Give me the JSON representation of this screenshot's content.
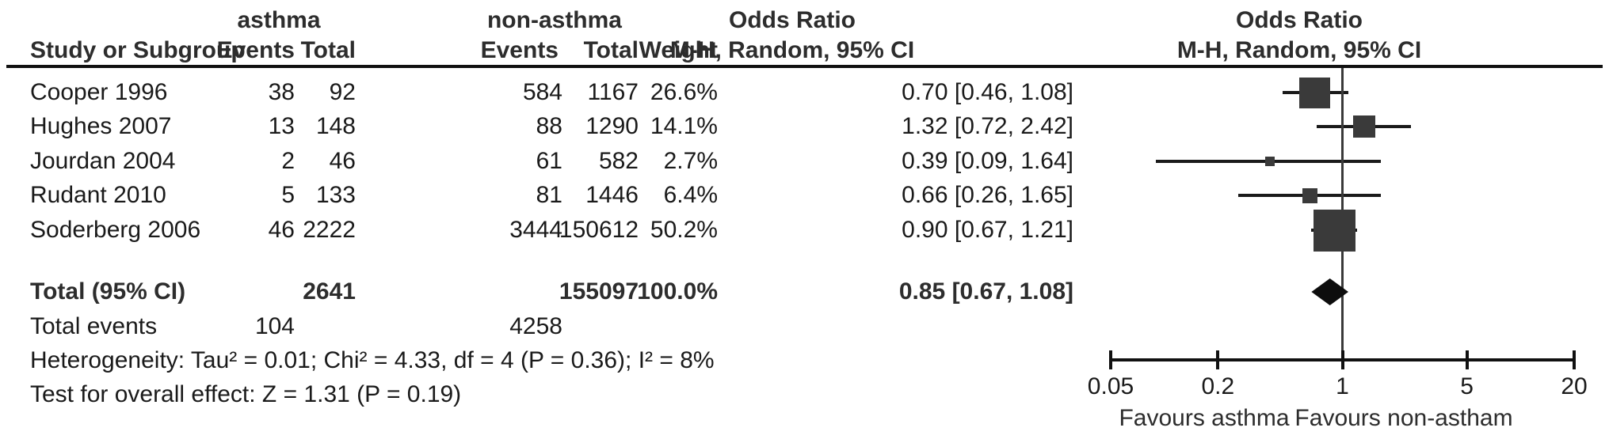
{
  "figure": {
    "group_left": "asthma",
    "group_right": "non-asthma",
    "col_study": "Study or Subgroup",
    "col_events": "Events",
    "col_total": "Total",
    "col_weight": "Weight",
    "or_title": "Odds Ratio",
    "or_method": "M-H, Random, 95% CI"
  },
  "studies": [
    {
      "name": "Cooper 1996",
      "events_asthma": "38",
      "total_asthma": "92",
      "events_non_asthma": "584",
      "total_non_asthma": "1167",
      "weight": "26.6%",
      "ci_text": "0.70 [0.46, 1.08]",
      "or": 0.7,
      "ci_low": 0.46,
      "ci_high": 1.08,
      "weight_pct": 26.6
    },
    {
      "name": "Hughes 2007",
      "events_asthma": "13",
      "total_asthma": "148",
      "events_non_asthma": "88",
      "total_non_asthma": "1290",
      "weight": "14.1%",
      "ci_text": "1.32 [0.72, 2.42]",
      "or": 1.32,
      "ci_low": 0.72,
      "ci_high": 2.42,
      "weight_pct": 14.1
    },
    {
      "name": "Jourdan 2004",
      "events_asthma": "2",
      "total_asthma": "46",
      "events_non_asthma": "61",
      "total_non_asthma": "582",
      "weight": "2.7%",
      "ci_text": "0.39 [0.09, 1.64]",
      "or": 0.39,
      "ci_low": 0.09,
      "ci_high": 1.64,
      "weight_pct": 2.7
    },
    {
      "name": "Rudant 2010",
      "events_asthma": "5",
      "total_asthma": "133",
      "events_non_asthma": "81",
      "total_non_asthma": "1446",
      "weight": "6.4%",
      "ci_text": "0.66 [0.26, 1.65]",
      "or": 0.66,
      "ci_low": 0.26,
      "ci_high": 1.65,
      "weight_pct": 6.4
    },
    {
      "name": "Soderberg 2006",
      "events_asthma": "46",
      "total_asthma": "2222",
      "events_non_asthma": "3444",
      "total_non_asthma": "150612",
      "weight": "50.2%",
      "ci_text": "0.90 [0.67, 1.21]",
      "or": 0.9,
      "ci_low": 0.67,
      "ci_high": 1.21,
      "weight_pct": 50.2
    }
  ],
  "totals": {
    "label": "Total (95% CI)",
    "total_asthma": "2641",
    "total_non_asthma": "155097",
    "weight": "100.0%",
    "ci_text": "0.85 [0.67, 1.08]",
    "or": 0.85,
    "ci_low": 0.67,
    "ci_high": 1.08
  },
  "total_events": {
    "label": "Total events",
    "asthma": "104",
    "non_asthma": "4258"
  },
  "footnotes": {
    "heterogeneity": "Heterogeneity: Tau² = 0.01; Chi² = 4.33, df = 4 (P = 0.36); I² = 8%",
    "overall_effect": "Test for overall effect: Z = 1.31 (P = 0.19)"
  },
  "axis": {
    "tick_labels": [
      "0.05",
      "0.2",
      "1",
      "5",
      "20"
    ],
    "favours_left": "Favours asthma",
    "favours_right": "Favours non-astham"
  },
  "colors": {
    "text": "#1a1a1a",
    "header_text": "#2d2d2d",
    "square": "#3a3a3a",
    "diamond": "#0d0d0d",
    "line": "#1a1a1a"
  },
  "chart_data": {
    "type": "scatter",
    "subtype": "forest_plot_meta_analysis",
    "title": "Odds Ratio",
    "effect_measure": "M-H, Random, 95% CI",
    "xscale": "log",
    "xlim": [
      0.05,
      20
    ],
    "xticks": [
      0.05,
      0.2,
      1,
      5,
      20
    ],
    "grid": false,
    "null_line": 1,
    "studies": [
      {
        "study": "Cooper 1996",
        "events_asthma": 38,
        "total_asthma": 92,
        "events_non_asthma": 584,
        "total_non_asthma": 1167,
        "weight_pct": 26.6,
        "or": 0.7,
        "ci_low": 0.46,
        "ci_high": 1.08
      },
      {
        "study": "Hughes 2007",
        "events_asthma": 13,
        "total_asthma": 148,
        "events_non_asthma": 88,
        "total_non_asthma": 1290,
        "weight_pct": 14.1,
        "or": 1.32,
        "ci_low": 0.72,
        "ci_high": 2.42
      },
      {
        "study": "Jourdan 2004",
        "events_asthma": 2,
        "total_asthma": 46,
        "events_non_asthma": 61,
        "total_non_asthma": 582,
        "weight_pct": 2.7,
        "or": 0.39,
        "ci_low": 0.09,
        "ci_high": 1.64
      },
      {
        "study": "Rudant 2010",
        "events_asthma": 5,
        "total_asthma": 133,
        "events_non_asthma": 81,
        "total_non_asthma": 1446,
        "weight_pct": 6.4,
        "or": 0.66,
        "ci_low": 0.26,
        "ci_high": 1.65
      },
      {
        "study": "Soderberg 2006",
        "events_asthma": 46,
        "total_asthma": 2222,
        "events_non_asthma": 3444,
        "total_non_asthma": 150612,
        "weight_pct": 50.2,
        "or": 0.9,
        "ci_low": 0.67,
        "ci_high": 1.21
      }
    ],
    "total": {
      "label": "Total (95% CI)",
      "or": 0.85,
      "ci_low": 0.67,
      "ci_high": 1.08,
      "weight_pct": 100.0,
      "total_asthma": 2641,
      "total_non_asthma": 155097,
      "events_asthma": 104,
      "events_non_asthma": 4258
    },
    "heterogeneity": {
      "tau2": 0.01,
      "chi2": 4.33,
      "df": 4,
      "p": 0.36,
      "i2_pct": 8
    },
    "overall_effect": {
      "z": 1.31,
      "p": 0.19
    },
    "x_axis_footers": [
      "Favours asthma",
      "Favours non-astham"
    ]
  }
}
